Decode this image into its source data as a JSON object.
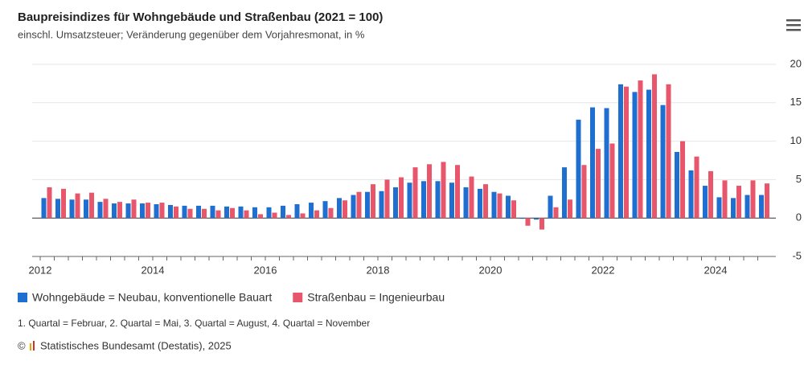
{
  "chart_data": {
    "type": "bar",
    "title": "Baupreisindizes für Wohngebäude und Straßenbau (2021 = 100)",
    "subtitle": "einschl. Umsatzsteuer; Veränderung gegenüber dem Vorjahresmonat, in %",
    "note": "1. Quartal = Februar, 2. Quartal = Mai, 3. Quartal = August, 4. Quartal = November",
    "source": "Statistisches Bundesamt (Destatis), 2025",
    "categories": [
      "2012",
      null,
      null,
      null,
      null,
      null,
      null,
      null,
      "2014",
      null,
      null,
      null,
      null,
      null,
      null,
      null,
      "2016",
      null,
      null,
      null,
      null,
      null,
      null,
      null,
      "2018",
      null,
      null,
      null,
      null,
      null,
      null,
      null,
      "2020",
      null,
      null,
      null,
      null,
      null,
      null,
      null,
      "2022",
      null,
      null,
      null,
      null,
      null,
      null,
      null,
      "2024",
      null,
      null,
      null
    ],
    "series": [
      {
        "name": "Wohngebäude = Neubau, konventionelle Bauart",
        "color": "#1f6fd1",
        "values": [
          2.6,
          2.5,
          2.4,
          2.4,
          2.1,
          1.9,
          1.9,
          1.9,
          1.8,
          1.7,
          1.6,
          1.6,
          1.6,
          1.5,
          1.5,
          1.4,
          1.4,
          1.6,
          1.8,
          2.0,
          2.2,
          2.6,
          3.0,
          3.4,
          3.5,
          4.0,
          4.6,
          4.8,
          4.8,
          4.6,
          4.0,
          3.8,
          3.4,
          2.9,
          -0.1,
          -0.2,
          2.9,
          6.6,
          12.8,
          14.4,
          14.3,
          17.4,
          16.4,
          16.7,
          14.7,
          8.6,
          6.2,
          4.2,
          2.7,
          2.6,
          3.0,
          3.0
        ]
      },
      {
        "name": "Straßenbau = Ingenieurbau",
        "color": "#e8566b",
        "values": [
          4.0,
          3.8,
          3.2,
          3.3,
          2.5,
          2.1,
          2.4,
          2.0,
          2.0,
          1.5,
          1.2,
          1.2,
          1.0,
          1.3,
          1.0,
          0.5,
          0.7,
          0.4,
          0.6,
          1.0,
          1.3,
          2.3,
          3.4,
          4.4,
          5.0,
          5.3,
          6.6,
          7.0,
          7.3,
          6.9,
          5.4,
          4.4,
          3.2,
          2.3,
          -1.0,
          -1.5,
          1.4,
          2.4,
          6.9,
          9.0,
          9.7,
          17.1,
          17.9,
          18.7,
          17.4,
          10.0,
          8.0,
          6.1,
          4.9,
          4.2,
          4.9,
          4.5
        ]
      }
    ],
    "ylim": [
      -5,
      20
    ],
    "yticks": [
      -5,
      0,
      5,
      10,
      15,
      20
    ],
    "grid": true,
    "legend": "bottom-left"
  }
}
